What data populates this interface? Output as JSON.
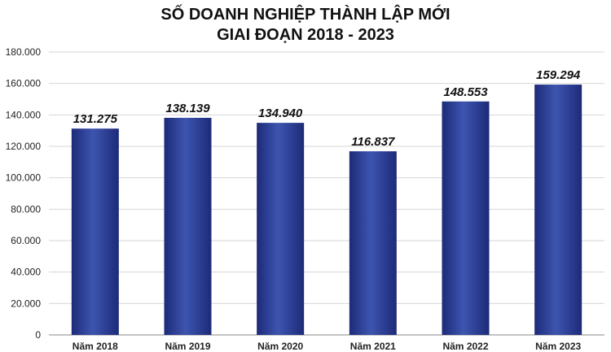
{
  "chart_data": {
    "type": "bar",
    "title_lines": [
      "SỐ DOANH NGHIỆP THÀNH LẬP MỚI",
      "GIAI ĐOẠN 2018 - 2023"
    ],
    "categories": [
      "Năm 2018",
      "Năm 2019",
      "Năm 2020",
      "Năm 2021",
      "Năm 2022",
      "Năm 2023"
    ],
    "values": [
      131275,
      138139,
      134940,
      116837,
      148553,
      159294
    ],
    "value_labels": [
      "131.275",
      "138.139",
      "134.940",
      "116.837",
      "148.553",
      "159.294"
    ],
    "ylim": [
      0,
      180000
    ],
    "yticks": [
      0,
      20000,
      40000,
      60000,
      80000,
      100000,
      120000,
      140000,
      160000,
      180000
    ],
    "ytick_labels": [
      "0",
      "20.000",
      "40.000",
      "60.000",
      "80.000",
      "100.000",
      "120.000",
      "140.000",
      "160.000",
      "180.000"
    ],
    "grid": true,
    "legend": "none",
    "bar_color_light": "#3d55b0",
    "bar_color_dark": "#1d2a78"
  }
}
